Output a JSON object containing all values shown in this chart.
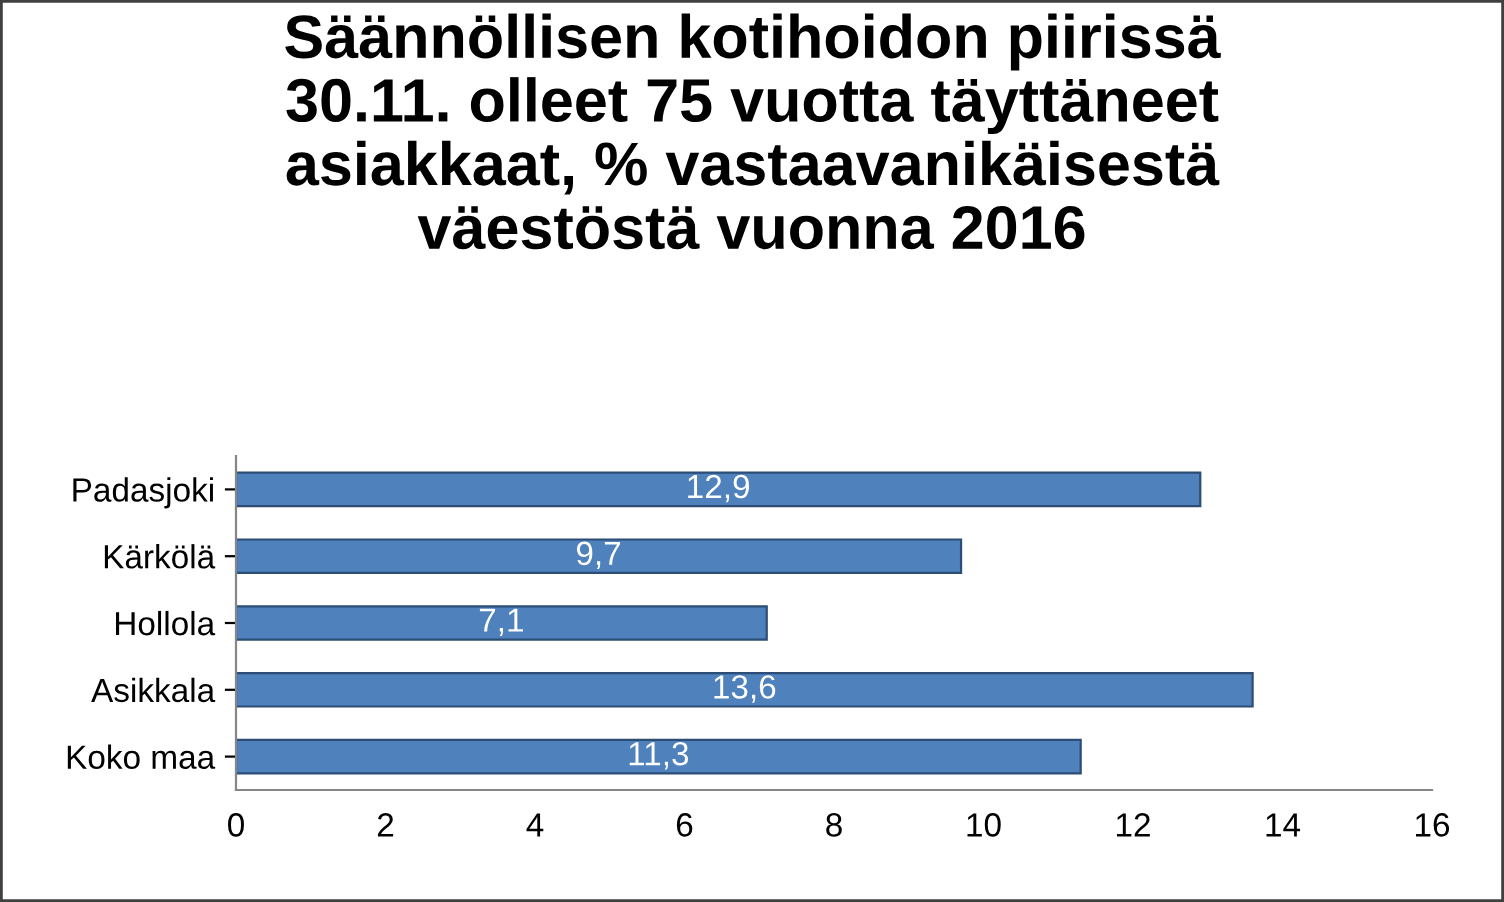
{
  "chart_data": {
    "type": "bar",
    "orientation": "horizontal",
    "title": "Säännöllisen kotihoidon piirissä\n30.11. olleet 75 vuotta täyttäneet\nasiakkaat, % vastaavanikäisestä\nväestöstä vuonna 2016",
    "categories": [
      "Padasjoki",
      "Kärkölä",
      "Hollola",
      "Asikkala",
      "Koko maa"
    ],
    "values": [
      12.9,
      9.7,
      7.1,
      13.6,
      11.3
    ],
    "value_labels": [
      "12,9",
      "9,7",
      "7,1",
      "13,6",
      "11,3"
    ],
    "color": "#4f81bd",
    "xlim": [
      0,
      16
    ],
    "xticks": [
      0,
      2,
      4,
      6,
      8,
      10,
      12,
      14,
      16
    ],
    "grid": false,
    "legend": false
  }
}
